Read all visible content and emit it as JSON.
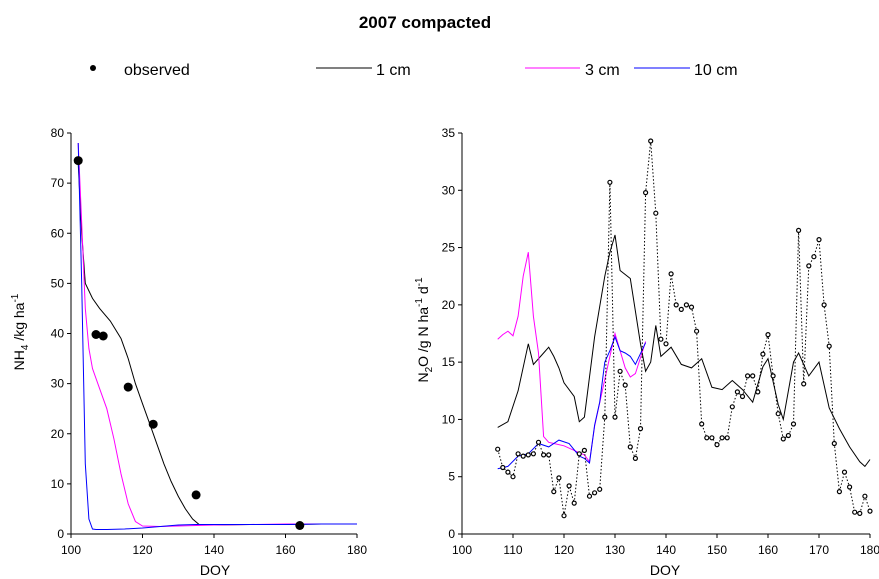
{
  "figure": {
    "title": "2007 compacted",
    "legend": [
      {
        "label": "observed",
        "marker": "dot",
        "color": "#000000"
      },
      {
        "label": "1 cm",
        "marker": "line",
        "color": "#000000"
      },
      {
        "label": "3 cm",
        "marker": "line",
        "color": "#ff00ff"
      },
      {
        "label": "10 cm",
        "marker": "line",
        "color": "#0000ff"
      }
    ]
  },
  "chart_data": [
    {
      "type": "line",
      "xlabel": "DOY",
      "ylabel_main": "NH",
      "ylabel_sub": "4",
      "ylabel_unit": " /kg ha",
      "ylabel_sup": "-1",
      "xlim": [
        100,
        180
      ],
      "ylim": [
        0,
        80
      ],
      "xticks": [
        100,
        120,
        140,
        160,
        180
      ],
      "yticks": [
        0,
        10,
        20,
        30,
        40,
        50,
        60,
        70,
        80
      ],
      "observed": {
        "name": "observed",
        "x": [
          102,
          107,
          109,
          116,
          123,
          135,
          164
        ],
        "y": [
          74.5,
          39.8,
          39.5,
          29.3,
          21.9,
          7.8,
          1.7
        ]
      },
      "series": [
        {
          "name": "1 cm",
          "color": "#000000",
          "x": [
            102,
            103,
            104,
            106,
            108,
            111,
            114,
            116,
            118,
            120,
            122,
            124,
            126,
            128,
            130,
            132,
            134,
            136,
            140,
            150,
            160,
            170,
            180
          ],
          "y": [
            74,
            60,
            50,
            47,
            45,
            42.5,
            39,
            35,
            30,
            26,
            22,
            18,
            14,
            10.5,
            7.5,
            5,
            3,
            1.8,
            1.8,
            1.9,
            1.9,
            2,
            2
          ]
        },
        {
          "name": "3 cm",
          "color": "#ff00ff",
          "x": [
            102,
            103,
            104,
            105,
            106,
            108,
            110,
            112,
            114,
            116,
            118,
            120,
            125,
            130,
            140,
            150,
            160,
            170,
            180
          ],
          "y": [
            78,
            62,
            45,
            37,
            33,
            29,
            25,
            19,
            12,
            6,
            2.5,
            1.6,
            1.5,
            1.6,
            1.8,
            1.9,
            2,
            2,
            2
          ]
        },
        {
          "name": "10 cm",
          "color": "#0000ff",
          "x": [
            102,
            103,
            104,
            105,
            106,
            107,
            110,
            115,
            120,
            125,
            130,
            135,
            140,
            150,
            160,
            170,
            180
          ],
          "y": [
            78,
            50,
            14,
            3,
            1,
            0.9,
            0.9,
            1,
            1.2,
            1.5,
            1.8,
            1.9,
            1.9,
            1.9,
            1.9,
            2,
            2
          ]
        }
      ]
    },
    {
      "type": "line",
      "xlabel": "DOY",
      "ylabel_main": "N",
      "ylabel_sub": "2",
      "ylabel_unit": "O /g N ha",
      "ylabel_sup1": "-1",
      "ylabel_unit2": " d",
      "ylabel_sup2": "-1",
      "xlim": [
        100,
        180
      ],
      "ylim": [
        0,
        35
      ],
      "xticks": [
        100,
        110,
        120,
        130,
        140,
        150,
        160,
        170,
        180
      ],
      "yticks": [
        0,
        5,
        10,
        15,
        20,
        25,
        30,
        35
      ],
      "observed": {
        "name": "observed",
        "style": "dotted",
        "x": [
          107,
          108,
          109,
          110,
          111,
          112,
          113,
          114,
          115,
          116,
          117,
          118,
          119,
          120,
          121,
          122,
          123,
          124,
          125,
          126,
          127,
          128,
          129,
          130,
          131,
          132,
          133,
          134,
          135,
          136,
          137,
          138,
          139,
          140,
          141,
          142,
          143,
          144,
          145,
          146,
          147,
          148,
          149,
          150,
          151,
          152,
          153,
          154,
          155,
          156,
          157,
          158,
          159,
          160,
          161,
          162,
          163,
          164,
          165,
          166,
          167,
          168,
          169,
          170,
          171,
          172,
          173,
          174,
          175,
          176,
          177,
          178,
          179,
          180
        ],
        "y": [
          7.4,
          5.8,
          5.4,
          5.0,
          7.0,
          6.8,
          6.9,
          7.0,
          8.0,
          6.9,
          6.9,
          3.7,
          4.9,
          1.6,
          4.2,
          2.7,
          7.0,
          7.3,
          3.3,
          3.6,
          3.9,
          10.2,
          30.7,
          10.2,
          14.2,
          13.0,
          7.6,
          6.6,
          9.2,
          29.8,
          34.3,
          28.0,
          17.0,
          16.6,
          22.7,
          20.0,
          19.6,
          20.0,
          19.8,
          17.7,
          9.6,
          8.4,
          8.4,
          7.8,
          8.4,
          8.4,
          11.1,
          12.4,
          12.0,
          13.8,
          13.8,
          12.4,
          15.7,
          17.4,
          13.8,
          10.5,
          8.3,
          8.6,
          9.6,
          26.5,
          13.1,
          23.4,
          24.2,
          25.7,
          20.0,
          16.4,
          7.9,
          3.7,
          5.4,
          4.1,
          1.9,
          1.8,
          3.3,
          2.0
        ]
      },
      "series": [
        {
          "name": "1 cm",
          "color": "#000000",
          "x": [
            107,
            109,
            111,
            113,
            114,
            116,
            117,
            118,
            119,
            120,
            122,
            123,
            124,
            126,
            128,
            129,
            130,
            131,
            133,
            135,
            136,
            137,
            138,
            139,
            141,
            143,
            145,
            147,
            149,
            151,
            153,
            155,
            157,
            159,
            160,
            162,
            163,
            165,
            166,
            168,
            170,
            172,
            174,
            176,
            178,
            179,
            180
          ],
          "y": [
            9.3,
            9.8,
            12.5,
            16.6,
            14.8,
            15.8,
            16.3,
            15.5,
            14.5,
            13.2,
            12.0,
            9.8,
            10.2,
            17.2,
            22.5,
            24.6,
            26.1,
            23.0,
            22.3,
            16.6,
            14.2,
            15.0,
            18.2,
            15.5,
            16.3,
            14.8,
            14.5,
            15.3,
            12.8,
            12.6,
            13.4,
            12.6,
            11.5,
            14.6,
            15.3,
            11.3,
            10.0,
            15.0,
            15.8,
            13.8,
            15.0,
            11.0,
            9.2,
            7.6,
            6.3,
            5.9,
            6.5
          ]
        },
        {
          "name": "3 cm",
          "color": "#ff00ff",
          "x": [
            107,
            108,
            109,
            110,
            111,
            112,
            113,
            114,
            115,
            116,
            117,
            118,
            120,
            122,
            124,
            125,
            126,
            128,
            130,
            132,
            133,
            134,
            136
          ],
          "y": [
            17.0,
            17.4,
            17.7,
            17.3,
            19.0,
            22.5,
            24.6,
            19.0,
            15.8,
            8.5,
            8.0,
            7.9,
            7.7,
            7.3,
            6.9,
            6.3,
            9.4,
            13.5,
            17.5,
            14.5,
            13.7,
            14.0,
            16.8
          ]
        },
        {
          "name": "10 cm",
          "color": "#0000ff",
          "x": [
            107,
            109,
            111,
            113,
            115,
            117,
            119,
            121,
            123,
            124,
            125,
            126,
            127,
            128,
            129,
            130,
            131,
            132,
            133,
            134,
            136
          ],
          "y": [
            5.7,
            5.9,
            6.8,
            7.0,
            7.9,
            7.6,
            8.2,
            7.9,
            6.8,
            6.6,
            6.2,
            9.5,
            11.5,
            15.0,
            16.0,
            17.2,
            16.0,
            15.8,
            15.5,
            14.8,
            16.7
          ]
        }
      ]
    }
  ]
}
